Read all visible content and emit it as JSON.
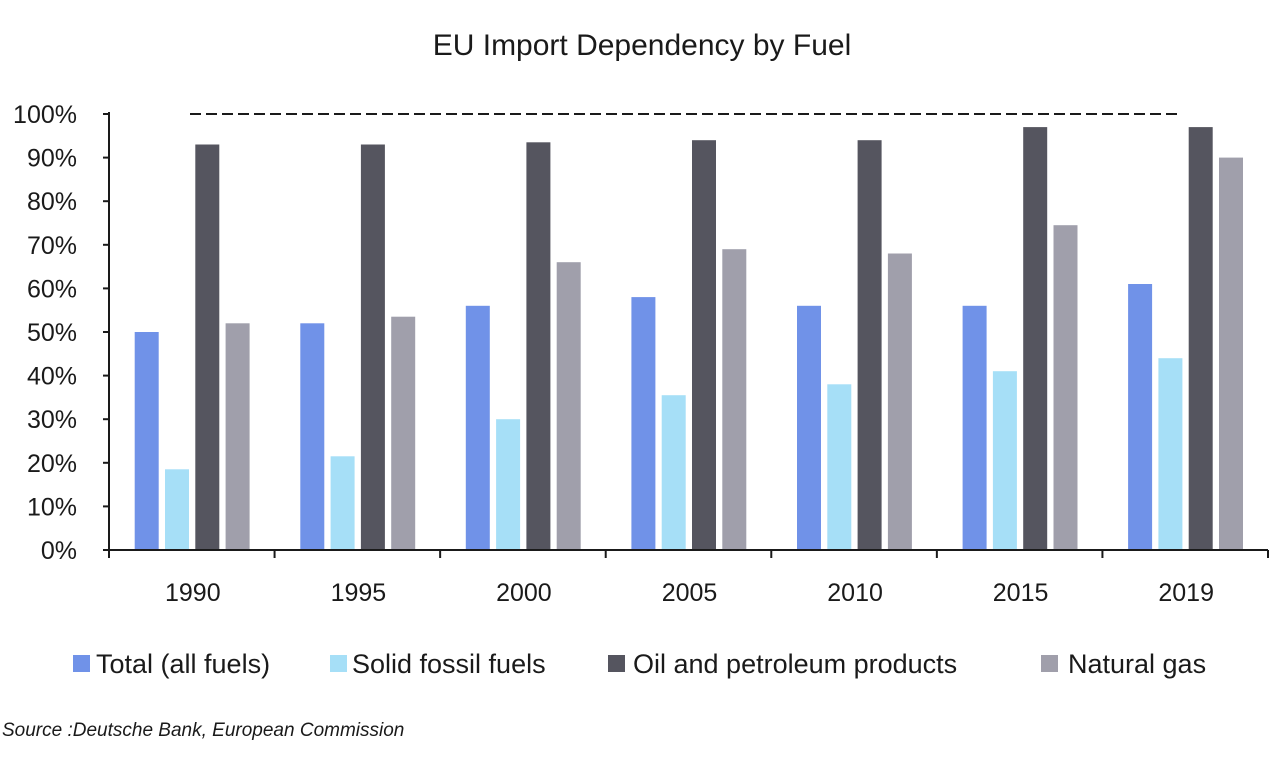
{
  "chart_data": {
    "type": "bar",
    "title": "EU Import Dependency by Fuel",
    "xlabel": "",
    "ylabel": "",
    "categories": [
      "1990",
      "1995",
      "2000",
      "2005",
      "2010",
      "2015",
      "2019"
    ],
    "series": [
      {
        "name": "Total (all fuels)",
        "color": "#7092E8",
        "values": [
          50,
          52,
          56,
          58,
          56,
          56,
          61
        ]
      },
      {
        "name": "Solid fossil fuels",
        "color": "#A6DFF7",
        "values": [
          18.5,
          21.5,
          30,
          35.5,
          38,
          41,
          44
        ]
      },
      {
        "name": "Oil and petroleum products",
        "color": "#55555F",
        "values": [
          93,
          93,
          93.5,
          94,
          94,
          97,
          97
        ]
      },
      {
        "name": "Natural gas",
        "color": "#A09FAB",
        "values": [
          52,
          53.5,
          66,
          69,
          68,
          74.5,
          90
        ]
      }
    ],
    "ylim": [
      0,
      100
    ],
    "yticks": [
      "0%",
      "10%",
      "20%",
      "30%",
      "40%",
      "50%",
      "60%",
      "70%",
      "80%",
      "90%",
      "100%"
    ],
    "reference_line": {
      "value": 100,
      "style": "dashed"
    },
    "legend": "bottom",
    "grid": false,
    "source": "Source :Deutsche Bank, European Commission"
  }
}
